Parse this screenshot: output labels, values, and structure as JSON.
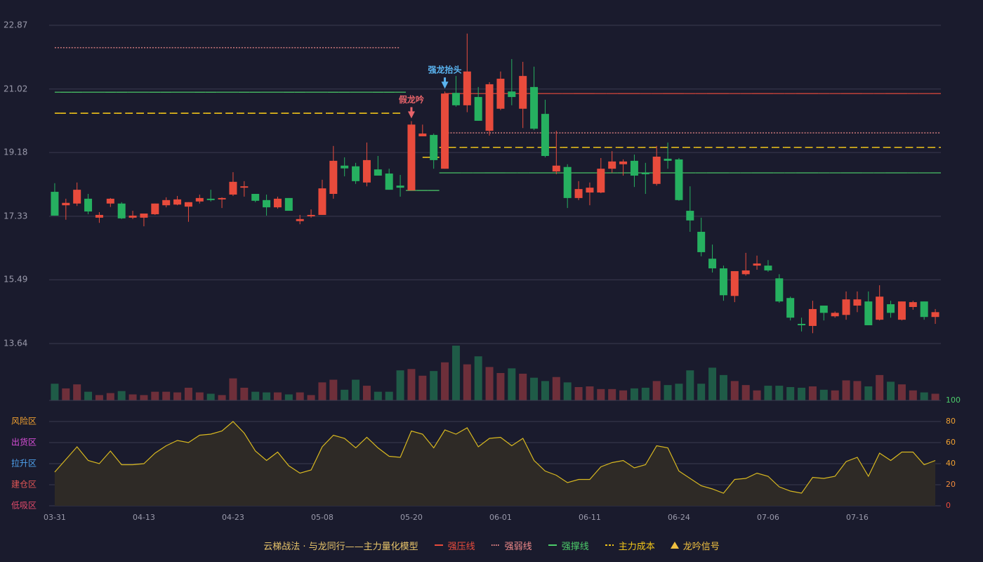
{
  "chart_data": [
    {
      "type": "candlestick",
      "categories": [
        "03-31",
        null,
        null,
        null,
        null,
        null,
        null,
        null,
        "04-13",
        null,
        null,
        null,
        null,
        null,
        null,
        null,
        "04-23",
        null,
        null,
        null,
        null,
        null,
        null,
        null,
        "05-08",
        null,
        null,
        null,
        null,
        null,
        null,
        null,
        "05-20",
        null,
        null,
        null,
        null,
        null,
        null,
        null,
        "06-01",
        null,
        null,
        null,
        null,
        null,
        null,
        null,
        "06-11",
        null,
        null,
        null,
        null,
        null,
        null,
        null,
        "06-24",
        null,
        null,
        null,
        null,
        null,
        null,
        null,
        "07-06",
        null,
        null,
        null,
        null,
        null,
        null,
        null,
        "07-16",
        null,
        null,
        null,
        null,
        null,
        null,
        null
      ],
      "open": [
        18.04,
        17.65,
        17.7,
        17.84,
        17.29,
        17.7,
        17.7,
        17.29,
        17.29,
        17.39,
        17.65,
        17.67,
        17.61,
        17.76,
        17.84,
        17.82,
        17.96,
        18.16,
        17.98,
        17.8,
        17.59,
        17.86,
        17.19,
        17.33,
        17.37,
        17.98,
        18.8,
        18.78,
        18.31,
        18.69,
        18.57,
        18.22,
        18.08,
        19.65,
        19.69,
        18.71,
        20.91,
        20.55,
        20.79,
        19.81,
        20.45,
        20.95,
        20.45,
        21.08,
        20.3,
        18.63,
        18.76,
        17.86,
        18.02,
        18.02,
        18.71,
        18.84,
        18.94,
        18.59,
        18.27,
        19.0,
        18.98,
        17.49,
        16.88,
        16.1,
        15.82,
        15.02,
        15.65,
        15.9,
        15.9,
        15.53,
        14.96,
        14.21,
        14.15,
        14.74,
        14.43,
        14.47,
        14.74,
        14.86,
        14.33,
        14.78,
        14.33,
        14.7,
        14.86,
        14.41
      ],
      "high": [
        18.29,
        17.84,
        18.31,
        17.98,
        17.45,
        17.86,
        17.74,
        17.49,
        17.41,
        17.7,
        17.88,
        17.92,
        17.74,
        17.96,
        18.1,
        17.88,
        18.61,
        18.35,
        17.98,
        17.96,
        17.9,
        17.86,
        17.37,
        17.53,
        18.39,
        19.37,
        19.04,
        18.88,
        19.47,
        19.08,
        18.71,
        18.53,
        20.09,
        19.99,
        19.73,
        20.95,
        21.4,
        22.63,
        21.08,
        21.22,
        21.53,
        21.89,
        21.81,
        21.67,
        20.71,
        19.81,
        18.84,
        18.35,
        18.31,
        19.02,
        19.22,
        18.98,
        19.12,
        18.88,
        19.37,
        19.47,
        19.02,
        18.2,
        17.29,
        16.51,
        15.9,
        15.74,
        16.27,
        16.19,
        16.06,
        15.65,
        15.0,
        14.39,
        14.88,
        14.74,
        14.57,
        15.15,
        15.15,
        15.15,
        15.33,
        14.88,
        14.86,
        14.88,
        14.86,
        14.64
      ],
      "low": [
        17.35,
        17.23,
        17.63,
        17.39,
        17.14,
        17.6,
        17.25,
        17.25,
        17.04,
        17.37,
        17.59,
        17.65,
        17.17,
        17.7,
        17.76,
        17.57,
        17.92,
        17.9,
        17.74,
        17.35,
        17.55,
        17.49,
        17.1,
        17.29,
        17.37,
        17.84,
        18.49,
        18.27,
        18.2,
        18.51,
        18.1,
        17.9,
        18.08,
        19.65,
        18.71,
        18.71,
        20.51,
        20.35,
        20.1,
        19.67,
        20.41,
        20.55,
        19.89,
        19.83,
        19.04,
        18.55,
        17.57,
        17.8,
        17.65,
        18.0,
        18.59,
        18.51,
        18.18,
        17.98,
        18.22,
        18.71,
        17.78,
        16.88,
        16.17,
        15.7,
        14.88,
        14.84,
        15.61,
        15.78,
        15.72,
        14.82,
        14.31,
        13.99,
        13.94,
        14.31,
        14.39,
        14.33,
        14.55,
        14.17,
        14.31,
        14.39,
        14.31,
        14.62,
        14.33,
        14.21
      ],
      "close": [
        17.35,
        17.72,
        18.1,
        17.47,
        17.37,
        17.84,
        17.27,
        17.35,
        17.41,
        17.7,
        17.8,
        17.82,
        17.74,
        17.86,
        17.8,
        17.86,
        18.33,
        18.2,
        17.78,
        17.59,
        17.84,
        17.49,
        17.25,
        17.37,
        18.14,
        18.94,
        18.72,
        18.35,
        18.96,
        18.51,
        18.1,
        18.16,
        19.99,
        19.73,
        18.96,
        20.89,
        20.55,
        21.53,
        20.1,
        21.16,
        21.32,
        20.79,
        21.4,
        19.87,
        19.08,
        18.8,
        17.86,
        18.12,
        18.16,
        18.71,
        18.92,
        18.92,
        18.51,
        18.55,
        19.06,
        18.94,
        17.8,
        17.21,
        16.29,
        15.82,
        15.04,
        15.74,
        15.76,
        15.96,
        15.76,
        14.86,
        14.39,
        14.17,
        14.64,
        14.53,
        14.53,
        14.92,
        14.92,
        14.17,
        15.0,
        14.53,
        14.86,
        14.84,
        14.41,
        14.55
      ],
      "up_color": "#e84b3c",
      "down_color": "#26b060",
      "ylim": [
        13.64,
        22.87
      ],
      "yticks": [
        22.87,
        21.02,
        19.18,
        17.33,
        15.49,
        13.64
      ],
      "grid": true,
      "legend_title": "云梯战法 · 与龙同行——主力量化模型",
      "levels": [
        {
          "name": "强压线",
          "color": "#e84b3c",
          "dash": "none",
          "values": [
            null,
            null,
            null,
            null,
            null,
            null,
            null,
            null,
            null,
            null,
            null,
            null,
            null,
            null,
            null,
            null,
            null,
            null,
            null,
            null,
            null,
            null,
            null,
            null,
            null,
            null,
            null,
            null,
            null,
            null,
            null,
            null,
            null,
            null,
            null,
            20.89,
            20.89,
            20.89,
            20.89,
            20.89,
            20.89,
            20.89,
            20.89,
            20.89,
            20.89,
            20.89,
            20.89,
            20.89,
            20.89,
            20.89,
            20.89,
            20.89,
            20.89,
            20.89,
            20.89,
            20.89,
            20.89,
            20.89,
            20.89,
            20.89,
            20.89,
            20.89,
            20.89,
            20.89,
            20.89,
            20.89,
            20.89,
            20.89,
            20.89,
            20.89,
            20.89,
            20.89,
            20.89,
            20.89,
            20.89,
            20.89,
            20.89,
            20.89,
            20.89,
            20.89
          ]
        },
        {
          "name": "强弱线",
          "color": "#f08a8a",
          "dash": "2,2",
          "values": [
            22.22,
            22.22,
            22.22,
            22.22,
            22.22,
            22.22,
            22.22,
            22.22,
            22.22,
            22.22,
            22.22,
            22.22,
            22.22,
            22.22,
            22.22,
            22.22,
            22.22,
            22.22,
            22.22,
            22.22,
            22.22,
            22.22,
            22.22,
            22.22,
            22.22,
            22.22,
            22.22,
            22.22,
            22.22,
            22.22,
            22.22,
            22.22,
            null,
            null,
            null,
            19.75,
            19.75,
            19.75,
            19.75,
            19.75,
            19.75,
            19.75,
            19.75,
            19.75,
            19.75,
            19.75,
            19.75,
            19.75,
            19.75,
            19.75,
            19.75,
            19.75,
            19.75,
            19.75,
            19.75,
            19.75,
            19.75,
            19.75,
            19.75,
            19.75,
            19.75,
            19.75,
            19.75,
            19.75,
            19.75,
            19.75,
            19.75,
            19.75,
            19.75,
            19.75,
            19.75,
            19.75,
            19.75,
            19.75,
            19.75,
            19.75,
            19.75,
            19.75,
            19.75,
            19.75
          ]
        },
        {
          "name": "强撑线",
          "color": "#4ccc6a",
          "dash": "none",
          "values": [
            20.93,
            20.93,
            20.93,
            20.93,
            20.93,
            20.93,
            20.93,
            20.93,
            20.93,
            20.93,
            20.93,
            20.93,
            20.93,
            20.93,
            20.93,
            20.93,
            20.93,
            20.93,
            20.93,
            20.93,
            20.93,
            20.93,
            20.93,
            20.93,
            20.93,
            20.93,
            20.93,
            20.93,
            20.93,
            20.93,
            20.93,
            20.93,
            18.08,
            18.08,
            18.08,
            18.59,
            18.59,
            18.59,
            18.59,
            18.59,
            18.59,
            18.59,
            18.59,
            18.59,
            18.59,
            18.59,
            18.59,
            18.59,
            18.59,
            18.59,
            18.59,
            18.59,
            18.59,
            18.59,
            18.59,
            18.59,
            18.59,
            18.59,
            18.59,
            18.59,
            18.59,
            18.59,
            18.59,
            18.59,
            18.59,
            18.59,
            18.59,
            18.59,
            18.59,
            18.59,
            18.59,
            18.59,
            18.59,
            18.59,
            18.59,
            18.59,
            18.59,
            18.59,
            18.59,
            18.59
          ]
        },
        {
          "name": "主力成本",
          "color": "#f0c419",
          "dash": "8,5",
          "values": [
            20.32,
            20.32,
            20.32,
            20.32,
            20.32,
            20.32,
            20.32,
            20.32,
            20.32,
            20.32,
            20.32,
            20.32,
            20.32,
            20.32,
            20.32,
            20.32,
            20.32,
            20.32,
            20.32,
            20.32,
            20.32,
            20.32,
            20.32,
            20.32,
            20.32,
            20.32,
            20.32,
            20.32,
            20.32,
            20.32,
            20.32,
            20.32,
            null,
            19.04,
            19.04,
            19.33,
            19.33,
            19.33,
            19.33,
            19.33,
            19.33,
            19.33,
            19.33,
            19.33,
            19.33,
            19.33,
            19.33,
            19.33,
            19.33,
            19.33,
            19.33,
            19.33,
            19.33,
            19.33,
            19.33,
            19.33,
            19.33,
            19.33,
            19.33,
            19.33,
            19.33,
            19.33,
            19.33,
            19.33,
            19.33,
            19.33,
            19.33,
            19.33,
            19.33,
            19.33,
            19.33,
            19.33,
            19.33,
            19.33,
            19.33,
            19.33,
            19.33,
            19.33,
            19.33,
            19.33
          ]
        }
      ],
      "annotations": [
        {
          "text": "假龙吟",
          "index": 32,
          "color": "#e8646a"
        },
        {
          "text": "强龙抬头",
          "index": 35,
          "color": "#5ab4f0"
        }
      ],
      "signal_label": "龙吟信号",
      "signal_color": "#f0c040"
    },
    {
      "type": "bar",
      "values": [
        25,
        18,
        24,
        13,
        8,
        11,
        14,
        9,
        8,
        13,
        13,
        12,
        19,
        12,
        10,
        8,
        33,
        19,
        13,
        12,
        12,
        9,
        12,
        8,
        27,
        31,
        16,
        31,
        22,
        13,
        13,
        45,
        47,
        37,
        44,
        57,
        82,
        54,
        66,
        50,
        41,
        48,
        40,
        34,
        29,
        35,
        27,
        20,
        21,
        17,
        17,
        15,
        18,
        19,
        29,
        23,
        25,
        45,
        25,
        49,
        38,
        29,
        23,
        15,
        22,
        22,
        20,
        19,
        21,
        16,
        15,
        30,
        29,
        21,
        38,
        28,
        24,
        15,
        12,
        10
      ],
      "up_color": "#6e2f3a",
      "down_color": "#1f5b47"
    },
    {
      "type": "area",
      "values": [
        32,
        44,
        56,
        43,
        40,
        52,
        39,
        39,
        40,
        50,
        57,
        62,
        60,
        67,
        68,
        71,
        80,
        69,
        52,
        43,
        51,
        38,
        31,
        34,
        56,
        67,
        64,
        55,
        65,
        55,
        47,
        46,
        71,
        68,
        55,
        72,
        68,
        74,
        56,
        64,
        65,
        57,
        64,
        43,
        33,
        29,
        22,
        25,
        25,
        37,
        41,
        43,
        36,
        39,
        57,
        55,
        33,
        26,
        19,
        16,
        12,
        25,
        26,
        31,
        28,
        18,
        14,
        12,
        27,
        26,
        28,
        42,
        46,
        28,
        50,
        43,
        51,
        51,
        39,
        43
      ],
      "color": "#d8b820",
      "fill": "#2e2a26",
      "ylim": [
        0,
        100
      ],
      "yticks": [
        0,
        20,
        40,
        60,
        80,
        100
      ],
      "ytick_colors": [
        "#e84b3c",
        "#f08a3c",
        "#f0a030",
        "#f0a030",
        "#f0a030",
        "#4ccc6a"
      ],
      "zones": [
        {
          "label": "风险区",
          "value": 80,
          "color": "#f0a030"
        },
        {
          "label": "出货区",
          "value": 60,
          "color": "#d94fd9"
        },
        {
          "label": "拉升区",
          "value": 40,
          "color": "#4fa3f0"
        },
        {
          "label": "建仓区",
          "value": 20,
          "color": "#e05555"
        },
        {
          "label": "低吸区",
          "value": 0,
          "color": "#e04a6a"
        }
      ]
    }
  ]
}
